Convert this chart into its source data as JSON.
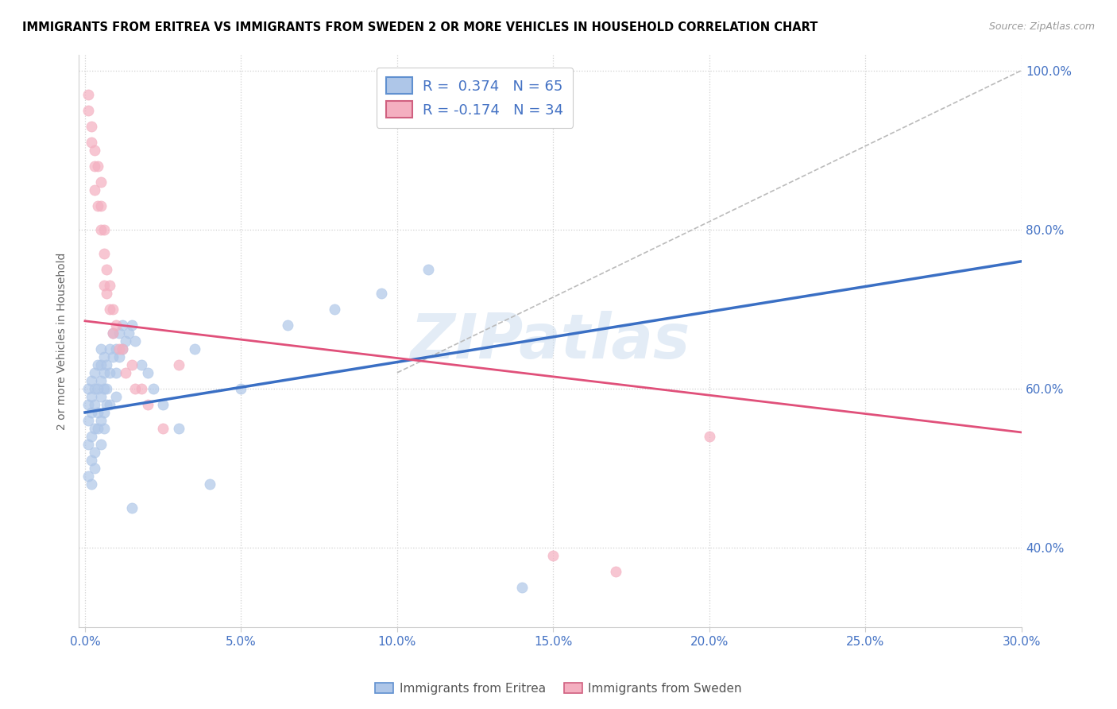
{
  "title": "IMMIGRANTS FROM ERITREA VS IMMIGRANTS FROM SWEDEN 2 OR MORE VEHICLES IN HOUSEHOLD CORRELATION CHART",
  "source": "Source: ZipAtlas.com",
  "ylabel": "2 or more Vehicles in Household",
  "xlabel": "",
  "xlim": [
    -0.002,
    0.3
  ],
  "ylim": [
    0.3,
    1.02
  ],
  "xtick_labels": [
    "0.0%",
    "5.0%",
    "10.0%",
    "15.0%",
    "20.0%",
    "25.0%",
    "30.0%"
  ],
  "xtick_values": [
    0.0,
    0.05,
    0.1,
    0.15,
    0.2,
    0.25,
    0.3
  ],
  "ytick_labels": [
    "100.0%",
    "80.0%",
    "60.0%",
    "40.0%"
  ],
  "ytick_values": [
    1.0,
    0.8,
    0.6,
    0.4
  ],
  "eritrea_R": 0.374,
  "eritrea_N": 65,
  "sweden_R": -0.174,
  "sweden_N": 34,
  "eritrea_color": "#aec6e8",
  "sweden_color": "#f4afc0",
  "eritrea_line_color": "#3a6fc4",
  "sweden_line_color": "#e0507a",
  "watermark": "ZIPatlas",
  "watermark_color": "#ccddef",
  "eritrea_line_x0": 0.0,
  "eritrea_line_y0": 0.57,
  "eritrea_line_x1": 0.3,
  "eritrea_line_y1": 0.76,
  "sweden_line_x0": 0.0,
  "sweden_line_y0": 0.685,
  "sweden_line_x1": 0.3,
  "sweden_line_y1": 0.545,
  "ref_line_x0": 0.1,
  "ref_line_y0": 0.62,
  "ref_line_x1": 0.3,
  "ref_line_y1": 1.0,
  "eritrea_x": [
    0.001,
    0.001,
    0.001,
    0.001,
    0.001,
    0.002,
    0.002,
    0.002,
    0.002,
    0.002,
    0.002,
    0.003,
    0.003,
    0.003,
    0.003,
    0.003,
    0.003,
    0.004,
    0.004,
    0.004,
    0.004,
    0.005,
    0.005,
    0.005,
    0.005,
    0.005,
    0.005,
    0.006,
    0.006,
    0.006,
    0.006,
    0.006,
    0.007,
    0.007,
    0.007,
    0.008,
    0.008,
    0.008,
    0.009,
    0.009,
    0.01,
    0.01,
    0.01,
    0.011,
    0.011,
    0.012,
    0.012,
    0.013,
    0.014,
    0.015,
    0.015,
    0.016,
    0.018,
    0.02,
    0.022,
    0.025,
    0.03,
    0.035,
    0.04,
    0.05,
    0.065,
    0.08,
    0.095,
    0.11,
    0.14
  ],
  "eritrea_y": [
    0.58,
    0.6,
    0.56,
    0.53,
    0.49,
    0.59,
    0.61,
    0.57,
    0.54,
    0.51,
    0.48,
    0.62,
    0.6,
    0.58,
    0.55,
    0.52,
    0.5,
    0.63,
    0.6,
    0.57,
    0.55,
    0.65,
    0.63,
    0.61,
    0.59,
    0.56,
    0.53,
    0.64,
    0.62,
    0.6,
    0.57,
    0.55,
    0.63,
    0.6,
    0.58,
    0.65,
    0.62,
    0.58,
    0.67,
    0.64,
    0.65,
    0.62,
    0.59,
    0.67,
    0.64,
    0.68,
    0.65,
    0.66,
    0.67,
    0.68,
    0.45,
    0.66,
    0.63,
    0.62,
    0.6,
    0.58,
    0.55,
    0.65,
    0.48,
    0.6,
    0.68,
    0.7,
    0.72,
    0.75,
    0.35
  ],
  "sweden_x": [
    0.001,
    0.001,
    0.002,
    0.002,
    0.003,
    0.003,
    0.003,
    0.004,
    0.004,
    0.005,
    0.005,
    0.005,
    0.006,
    0.006,
    0.006,
    0.007,
    0.007,
    0.008,
    0.008,
    0.009,
    0.009,
    0.01,
    0.011,
    0.012,
    0.013,
    0.015,
    0.016,
    0.018,
    0.02,
    0.025,
    0.03,
    0.15,
    0.17,
    0.2
  ],
  "sweden_y": [
    0.97,
    0.95,
    0.93,
    0.91,
    0.9,
    0.88,
    0.85,
    0.88,
    0.83,
    0.86,
    0.83,
    0.8,
    0.8,
    0.77,
    0.73,
    0.75,
    0.72,
    0.73,
    0.7,
    0.7,
    0.67,
    0.68,
    0.65,
    0.65,
    0.62,
    0.63,
    0.6,
    0.6,
    0.58,
    0.55,
    0.63,
    0.39,
    0.37,
    0.54
  ]
}
